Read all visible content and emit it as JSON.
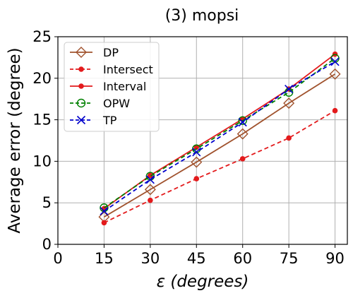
{
  "chart_data": {
    "type": "line",
    "title": "(3) mopsi",
    "xlabel_symbol": "ε",
    "xlabel_rest": " (degrees)",
    "ylabel": "Average error (degree)",
    "x": [
      15,
      30,
      45,
      60,
      75,
      90
    ],
    "xticks": [
      0,
      15,
      30,
      45,
      60,
      75,
      90
    ],
    "yticks": [
      0,
      5,
      10,
      15,
      20,
      25
    ],
    "xlim": [
      0,
      94
    ],
    "ylim": [
      0,
      25
    ],
    "grid": true,
    "legend_position": "top-left",
    "series": [
      {
        "name": "DP",
        "values": [
          3.3,
          6.6,
          9.9,
          13.3,
          17.0,
          20.5
        ],
        "color": "#a0522d",
        "dash": "solid",
        "marker": "diamond-open"
      },
      {
        "name": "Intersect",
        "values": [
          2.6,
          5.3,
          7.9,
          10.3,
          12.8,
          16.1
        ],
        "color": "#e31a1c",
        "dash": "dashed",
        "marker": "dot"
      },
      {
        "name": "Interval",
        "values": [
          4.3,
          8.3,
          11.7,
          15.1,
          18.7,
          22.9
        ],
        "color": "#e31a1c",
        "dash": "solid",
        "marker": "dot"
      },
      {
        "name": "OPW",
        "values": [
          4.4,
          8.2,
          11.5,
          14.9,
          18.3,
          22.4
        ],
        "color": "#008000",
        "dash": "dashed",
        "marker": "circle-open"
      },
      {
        "name": "TP",
        "values": [
          4.0,
          7.8,
          11.1,
          14.7,
          18.7,
          22.0
        ],
        "color": "#0000cc",
        "dash": "dashed",
        "marker": "x"
      }
    ]
  }
}
